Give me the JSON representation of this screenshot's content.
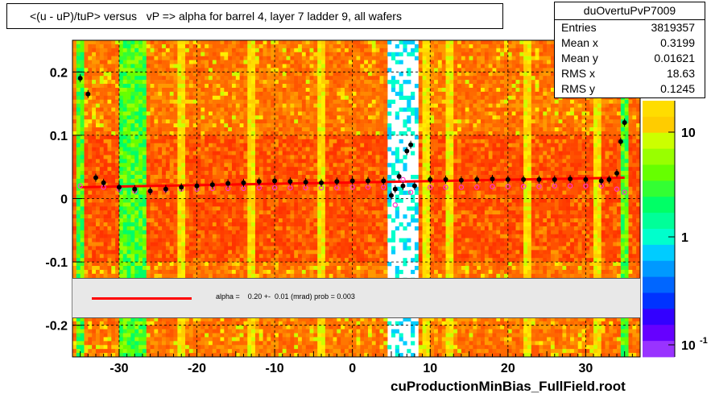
{
  "title": "<(u - uP)/tuP> versus   vP => alpha for barrel 4, layer 7 ladder 9, all wafers",
  "stats": {
    "name": "duOvertuPvP7009",
    "rows": [
      {
        "label": "Entries",
        "value": "3819357"
      },
      {
        "label": "Mean x",
        "value": "0.3199"
      },
      {
        "label": "Mean y",
        "value": "0.01621"
      },
      {
        "label": "RMS x",
        "value": "18.63"
      },
      {
        "label": "RMS y",
        "value": "0.1245"
      }
    ]
  },
  "fit": {
    "text": "alpha =    0.20 +-  0.01 (mrad) prob = 0.003",
    "line_color": "#ff0000"
  },
  "footer": "cuProductionMinBias_FullField.root",
  "chart_data": {
    "type": "heatmap",
    "xlim": [
      -36,
      37
    ],
    "ylim": [
      -0.25,
      0.25
    ],
    "x_ticks": [
      -30,
      -20,
      -10,
      0,
      10,
      20,
      30
    ],
    "x_tick_labels": [
      "-30",
      "-20",
      "-10",
      "0",
      "10",
      "20",
      "30"
    ],
    "y_ticks": [
      0.2,
      0.1,
      0,
      -0.1,
      -0.2
    ],
    "y_tick_labels": [
      "0.2",
      "0.1",
      "0",
      "-0.1",
      "-0.2"
    ],
    "z_ticks": [
      10,
      1,
      0.1
    ],
    "z_tick_labels": [
      "10",
      "1",
      "10-1"
    ],
    "z_scale": "log",
    "grid": true,
    "white_gap_x": [
      4.5,
      8.5
    ],
    "column_bands": [
      {
        "x": [
          -35.5,
          -34.5
        ],
        "level": "green"
      },
      {
        "x": [
          -30,
          -26.5
        ],
        "level": "green"
      },
      {
        "x": [
          -22.5,
          -21.5
        ],
        "level": "yellow"
      },
      {
        "x": [
          -13.5,
          -12.5
        ],
        "level": "yellow"
      },
      {
        "x": [
          -4.5,
          -3.5
        ],
        "level": "yellow"
      },
      {
        "x": [
          9,
          10
        ],
        "level": "yellow"
      },
      {
        "x": [
          12,
          13
        ],
        "level": "yellow"
      },
      {
        "x": [
          22,
          23
        ],
        "level": "yellow"
      },
      {
        "x": [
          31,
          32
        ],
        "level": "yellow"
      },
      {
        "x": [
          34.5,
          35.5
        ],
        "level": "green"
      }
    ],
    "profile_black": {
      "x": [
        -35,
        -34,
        -33,
        -32,
        -30,
        -28,
        -26,
        -24,
        -22,
        -20,
        -18,
        -16,
        -14,
        -12,
        -10,
        -8,
        -6,
        -4,
        -2,
        0,
        2,
        4,
        5,
        5.5,
        6,
        6.5,
        7,
        7.5,
        8,
        10,
        12,
        14,
        16,
        18,
        20,
        22,
        24,
        26,
        28,
        30,
        32,
        33,
        34,
        34.5,
        35
      ],
      "y": [
        0.19,
        0.165,
        0.033,
        0.025,
        0.018,
        0.015,
        0.012,
        0.015,
        0.018,
        0.02,
        0.022,
        0.024,
        0.025,
        0.027,
        0.028,
        0.027,
        0.026,
        0.025,
        0.027,
        0.028,
        0.028,
        0.028,
        0.005,
        0.015,
        0.035,
        0.02,
        0.075,
        0.085,
        0.02,
        0.03,
        0.03,
        0.029,
        0.03,
        0.031,
        0.03,
        0.03,
        0.03,
        0.03,
        0.031,
        0.03,
        0.028,
        0.03,
        0.04,
        0.09,
        0.12
      ]
    },
    "profile_magenta": {
      "x": [
        -35,
        -32,
        -30,
        -28,
        -26,
        -24,
        -22,
        -20,
        -18,
        -16,
        -14,
        -12,
        -10,
        -8,
        -6,
        -4,
        -2,
        0,
        2,
        4,
        5.5,
        6.5,
        7.5,
        10,
        12,
        14,
        16,
        18,
        20,
        22,
        24,
        26,
        28,
        30,
        32,
        34,
        35
      ],
      "y": [
        0.02,
        0.018,
        0.015,
        0.012,
        0.012,
        0.014,
        0.015,
        0.015,
        0.016,
        0.016,
        0.016,
        0.017,
        0.017,
        0.017,
        0.017,
        0.017,
        0.017,
        0.018,
        0.018,
        0.018,
        -0.01,
        0.03,
        0.01,
        0.018,
        0.018,
        0.018,
        0.018,
        0.019,
        0.019,
        0.019,
        0.019,
        0.02,
        0.02,
        0.02,
        0.02,
        0.015,
        0.01
      ]
    },
    "fit_line": {
      "x": [
        -35,
        35
      ],
      "y": [
        0.018,
        0.033
      ]
    }
  }
}
